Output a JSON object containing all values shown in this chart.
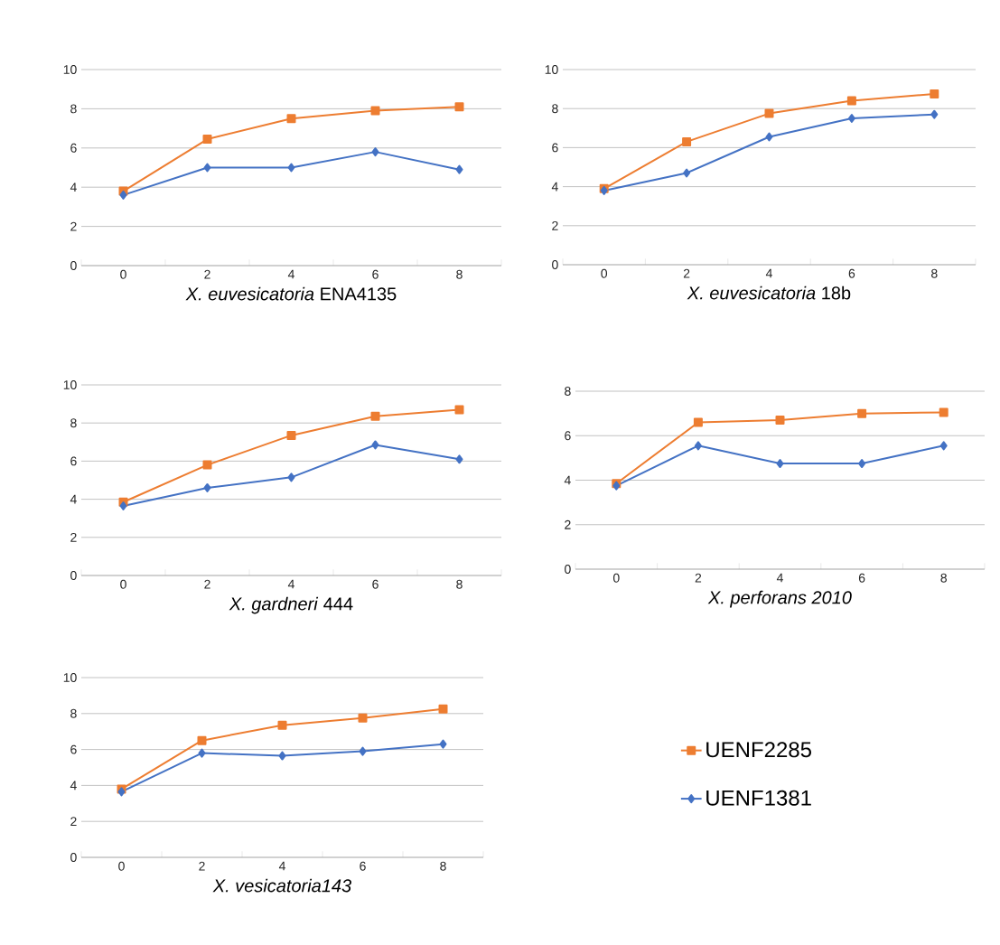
{
  "chart_data": [
    {
      "type": "line",
      "xlabel": "*X. euvesicatoria* ENA4135",
      "categories": [
        "0",
        "2",
        "4",
        "6",
        "8"
      ],
      "ylim": [
        0,
        10
      ],
      "yticks": [
        0,
        2,
        4,
        6,
        8,
        10
      ],
      "grid": "y",
      "series": [
        {
          "color": "#ed7d31",
          "marker": "square",
          "values": [
            3.8,
            6.45,
            7.5,
            7.9,
            8.1
          ]
        },
        {
          "color": "#4472c4",
          "marker": "diamond",
          "values": [
            3.6,
            5.0,
            5.0,
            5.8,
            4.9
          ]
        }
      ]
    },
    {
      "type": "line",
      "xlabel": "*X. euvesicatoria* 18b",
      "categories": [
        "0",
        "2",
        "4",
        "6",
        "8"
      ],
      "ylim": [
        0,
        10
      ],
      "yticks": [
        0,
        2,
        4,
        6,
        8,
        10
      ],
      "grid": "y",
      "series": [
        {
          "color": "#ed7d31",
          "marker": "square",
          "values": [
            3.9,
            6.3,
            7.75,
            8.4,
            8.75
          ]
        },
        {
          "color": "#4472c4",
          "marker": "diamond",
          "values": [
            3.8,
            4.7,
            6.55,
            7.5,
            7.7
          ]
        }
      ]
    },
    {
      "type": "line",
      "xlabel": "*X. gardneri* 444",
      "categories": [
        "0",
        "2",
        "4",
        "6",
        "8"
      ],
      "ylim": [
        0,
        10
      ],
      "yticks": [
        0,
        2,
        4,
        6,
        8,
        10
      ],
      "grid": "y",
      "series": [
        {
          "color": "#ed7d31",
          "marker": "square",
          "values": [
            3.85,
            5.8,
            7.35,
            8.35,
            8.7
          ]
        },
        {
          "color": "#4472c4",
          "marker": "diamond",
          "values": [
            3.65,
            4.6,
            5.15,
            6.85,
            6.1
          ]
        }
      ]
    },
    {
      "type": "line",
      "xlabel": "*X. perforans 2010*",
      "categories": [
        "0",
        "2",
        "4",
        "6",
        "8"
      ],
      "ylim": [
        0,
        8
      ],
      "yticks": [
        0,
        2,
        4,
        6,
        8
      ],
      "grid": "y",
      "series": [
        {
          "color": "#ed7d31",
          "marker": "square",
          "values": [
            3.85,
            6.6,
            6.7,
            7.0,
            7.05
          ]
        },
        {
          "color": "#4472c4",
          "marker": "diamond",
          "values": [
            3.75,
            5.55,
            4.75,
            4.75,
            5.55
          ]
        }
      ]
    },
    {
      "type": "line",
      "xlabel": "*X. vesicatoria143*",
      "categories": [
        "0",
        "2",
        "4",
        "6",
        "8"
      ],
      "ylim": [
        0,
        10
      ],
      "yticks": [
        0,
        2,
        4,
        6,
        8,
        10
      ],
      "grid": "y",
      "legend": "right",
      "series": [
        {
          "name": "UENF2285",
          "color": "#ed7d31",
          "marker": "square",
          "values": [
            3.8,
            6.5,
            7.35,
            7.75,
            8.25
          ]
        },
        {
          "name": "UENF1381",
          "color": "#4472c4",
          "marker": "diamond",
          "values": [
            3.65,
            5.8,
            5.65,
            5.9,
            6.3
          ]
        }
      ]
    }
  ]
}
